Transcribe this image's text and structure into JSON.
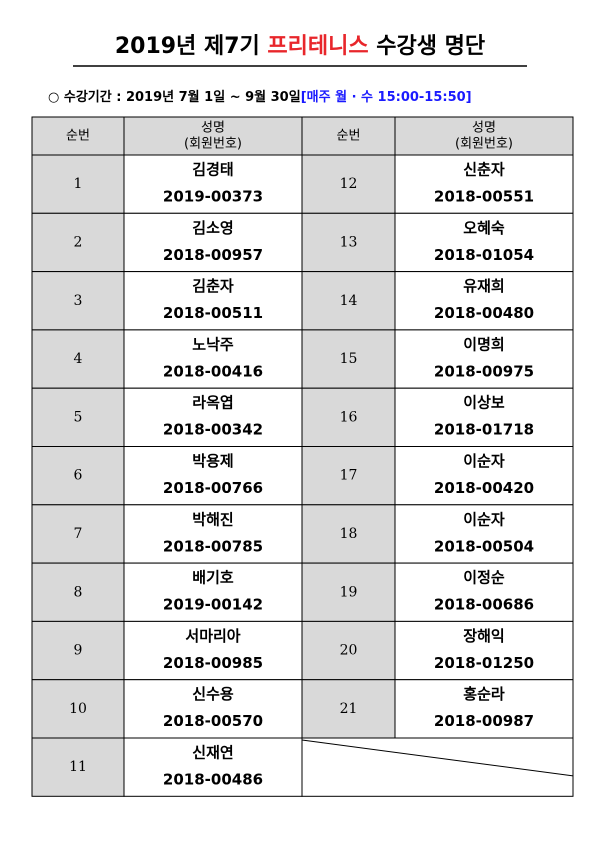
{
  "header": {
    "title_parts": [
      "2019년 제7기",
      "프리테니스",
      "수강생 명단"
    ],
    "period": "○ 수강기간 : 2019년 7월 1일 ~ 9월 30일",
    "period_note": "[매주 월 · 수 15:00-15:50]"
  },
  "table": {
    "columns": [
      "순번",
      "성명",
      "(회원번호)"
    ],
    "rows": [
      {
        "no": 1,
        "name": "김경태",
        "id": "2019-00373"
      },
      {
        "no": 2,
        "name": "김소영",
        "id": "2018-00957"
      },
      {
        "no": 3,
        "name": "김춘자",
        "id": "2018-00511"
      },
      {
        "no": 4,
        "name": "노낙주",
        "id": "2018-00416"
      },
      {
        "no": 5,
        "name": "라옥엽",
        "id": "2018-00342"
      },
      {
        "no": 6,
        "name": "박용제",
        "id": "2018-00766"
      },
      {
        "no": 7,
        "name": "박해진",
        "id": "2018-00785"
      },
      {
        "no": 8,
        "name": "배기호",
        "id": "2019-00142"
      },
      {
        "no": 9,
        "name": "서마리아",
        "id": "2018-00985"
      },
      {
        "no": 10,
        "name": "신수용",
        "id": "2018-00570"
      },
      {
        "no": 11,
        "name": "신재연",
        "id": "2018-00486"
      },
      {
        "no": 12,
        "name": "신춘자",
        "id": "2018-00551"
      },
      {
        "no": 13,
        "name": "오혜숙",
        "id": "2018-01054"
      },
      {
        "no": 14,
        "name": "유재희",
        "id": "2018-00480"
      },
      {
        "no": 15,
        "name": "이명희",
        "id": "2018-00975"
      },
      {
        "no": 16,
        "name": "이상보",
        "id": "2018-01718"
      },
      {
        "no": 17,
        "name": "이순자",
        "id": "2018-00420"
      },
      {
        "no": 18,
        "name": "이순자",
        "id": "2018-00504"
      },
      {
        "no": 19,
        "name": "이정순",
        "id": "2018-00686"
      },
      {
        "no": 20,
        "name": "장해익",
        "id": "2018-01250"
      },
      {
        "no": 21,
        "name": "홍순라",
        "id": "2018-00987"
      }
    ]
  }
}
